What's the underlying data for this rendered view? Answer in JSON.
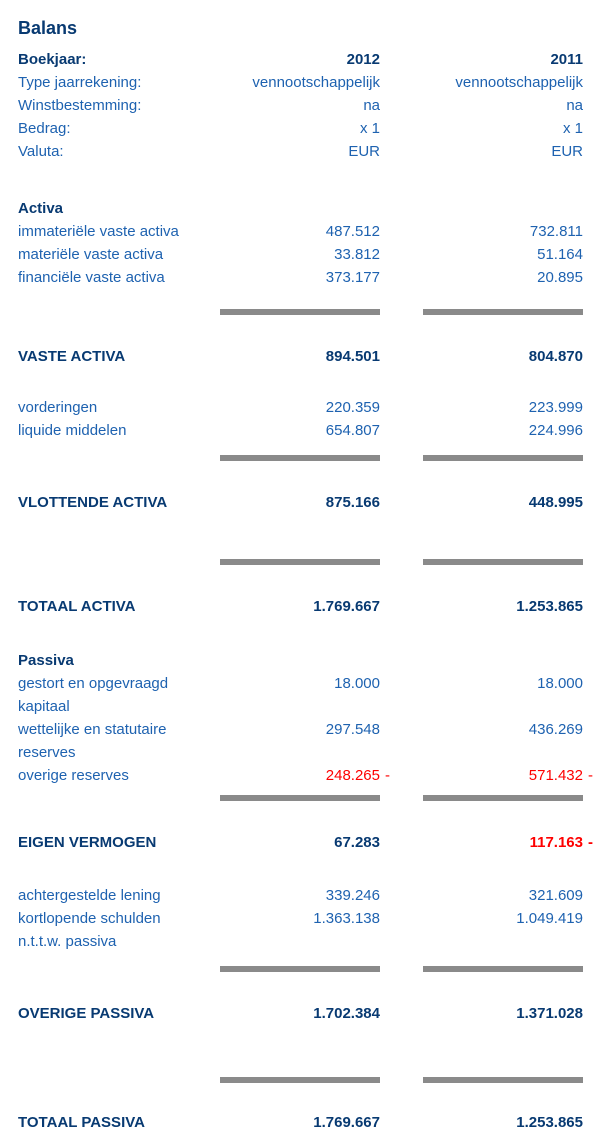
{
  "title": "Balans",
  "colors": {
    "heading_navy": "#083a72",
    "text_blue": "#1e62b0",
    "negative_red": "#fe0000",
    "rule_gray": "#8a8a8a"
  },
  "meta": [
    {
      "label": "Boekjaar:",
      "v2012": "2012",
      "v2011": "2011"
    },
    {
      "label": "Type jaarrekening:",
      "v2012": "vennootschappelijk",
      "v2011": "vennootschappelijk"
    },
    {
      "label": "Winstbestemming:",
      "v2012": "na",
      "v2011": "na"
    },
    {
      "label": "Bedrag:",
      "v2012": "x 1",
      "v2011": "x 1"
    },
    {
      "label": "Valuta:",
      "v2012": "EUR",
      "v2011": "EUR"
    }
  ],
  "activa": {
    "header": "Activa",
    "vaste_items": [
      {
        "label": "immateriële vaste activa",
        "v2012": "487.512",
        "v2011": "732.811"
      },
      {
        "label": "materiële vaste activa",
        "v2012": "33.812",
        "v2011": "51.164"
      },
      {
        "label": "financiële vaste activa",
        "v2012": "373.177",
        "v2011": "20.895"
      }
    ],
    "vaste_total": {
      "label": "VASTE ACTIVA",
      "v2012": "894.501",
      "v2011": "804.870"
    },
    "vlottende_items": [
      {
        "label": "vorderingen",
        "v2012": "220.359",
        "v2011": "223.999"
      },
      {
        "label": "liquide middelen",
        "v2012": "654.807",
        "v2011": "224.996"
      }
    ],
    "vlottende_total": {
      "label": "VLOTTENDE ACTIVA",
      "v2012": "875.166",
      "v2011": "448.995"
    },
    "totaal": {
      "label": "TOTAAL ACTIVA",
      "v2012": "1.769.667",
      "v2011": "1.253.865"
    }
  },
  "passiva": {
    "header": "Passiva",
    "eigen_items": [
      {
        "label": "gestort en opgevraagd kapitaal",
        "v2012": "18.000",
        "v2011": "18.000"
      },
      {
        "label": "wettelijke en statutaire reserves",
        "v2012": "297.548",
        "v2011": "436.269"
      },
      {
        "label": "overige reserves",
        "v2012": "248.265",
        "s2012": "-",
        "v2011": "571.432",
        "s2011": "-"
      }
    ],
    "eigen_total": {
      "label": "EIGEN VERMOGEN",
      "v2012": "67.283",
      "v2011": "117.163",
      "s2011": "-"
    },
    "overige_items": [
      {
        "label": "achtergestelde lening",
        "v2012": "339.246",
        "v2011": "321.609"
      },
      {
        "label": "kortlopende schulden",
        "v2012": "1.363.138",
        "v2011": "1.049.419"
      },
      {
        "label": "n.t.t.w. passiva",
        "v2012": "",
        "v2011": ""
      }
    ],
    "overige_total": {
      "label": "OVERIGE PASSIVA",
      "v2012": "1.702.384",
      "v2011": "1.371.028"
    },
    "totaal": {
      "label": "TOTAAL PASSIVA",
      "v2012": "1.769.667",
      "v2011": "1.253.865"
    }
  }
}
